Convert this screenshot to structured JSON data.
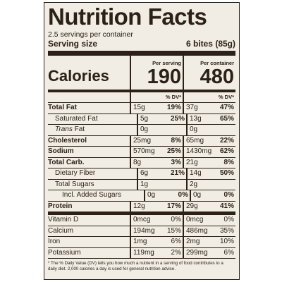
{
  "label": {
    "title": "Nutrition Facts",
    "servings": "2.5 servings per container",
    "serving_size_label": "Serving size",
    "serving_size_value": "6 bites (85g)",
    "calories_label": "Calories",
    "per_serving_caption": "Per serving",
    "per_container_caption": "Per container",
    "calories_serving": "190",
    "calories_container": "480",
    "dv_header": "% DV*",
    "footnote": "* The % Daily Value (DV) tells you how much a nutrient in a serving of food contributes to a daily diet. 2,000 calories a day is used for general nutrition advice."
  },
  "rows": [
    {
      "name": "Total Fat",
      "s_amt": "15g",
      "s_dv": "19%",
      "c_amt": "37g",
      "c_dv": "47%"
    },
    {
      "name": "Saturated Fat",
      "s_amt": "5g",
      "s_dv": "25%",
      "c_amt": "13g",
      "c_dv": "65%"
    },
    {
      "name": "Trans",
      "suffix": " Fat",
      "s_amt": "0g",
      "s_dv": "",
      "c_amt": "0g",
      "c_dv": ""
    },
    {
      "name": "Cholesterol",
      "s_amt": "25mg",
      "s_dv": "8%",
      "c_amt": "65mg",
      "c_dv": "22%"
    },
    {
      "name": "Sodium",
      "s_amt": "570mg",
      "s_dv": "25%",
      "c_amt": "1430mg",
      "c_dv": "62%"
    },
    {
      "name": "Total Carb.",
      "s_amt": "8g",
      "s_dv": "3%",
      "c_amt": "21g",
      "c_dv": "8%"
    },
    {
      "name": "Dietary Fiber",
      "s_amt": "6g",
      "s_dv": "21%",
      "c_amt": "14g",
      "c_dv": "50%"
    },
    {
      "name": "Total Sugars",
      "s_amt": "1g",
      "s_dv": "",
      "c_amt": "2g",
      "c_dv": ""
    },
    {
      "name": "Incl. Added Sugars",
      "s_amt": "0g",
      "s_dv": "0%",
      "c_amt": "0g",
      "c_dv": "0%"
    },
    {
      "name": "Protein",
      "s_amt": "12g",
      "s_dv": "17%",
      "c_amt": "29g",
      "c_dv": "41%"
    },
    {
      "name": "Vitamin D",
      "s_amt": "0mcg",
      "s_dv": "0%",
      "c_amt": "0mcg",
      "c_dv": "0%"
    },
    {
      "name": "Calcium",
      "s_amt": "194mg",
      "s_dv": "15%",
      "c_amt": "486mg",
      "c_dv": "35%"
    },
    {
      "name": "Iron",
      "s_amt": "1mg",
      "s_dv": "6%",
      "c_amt": "2mg",
      "c_dv": "10%"
    },
    {
      "name": "Potassium",
      "s_amt": "119mg",
      "s_dv": "2%",
      "c_amt": "299mg",
      "c_dv": "6%"
    }
  ]
}
